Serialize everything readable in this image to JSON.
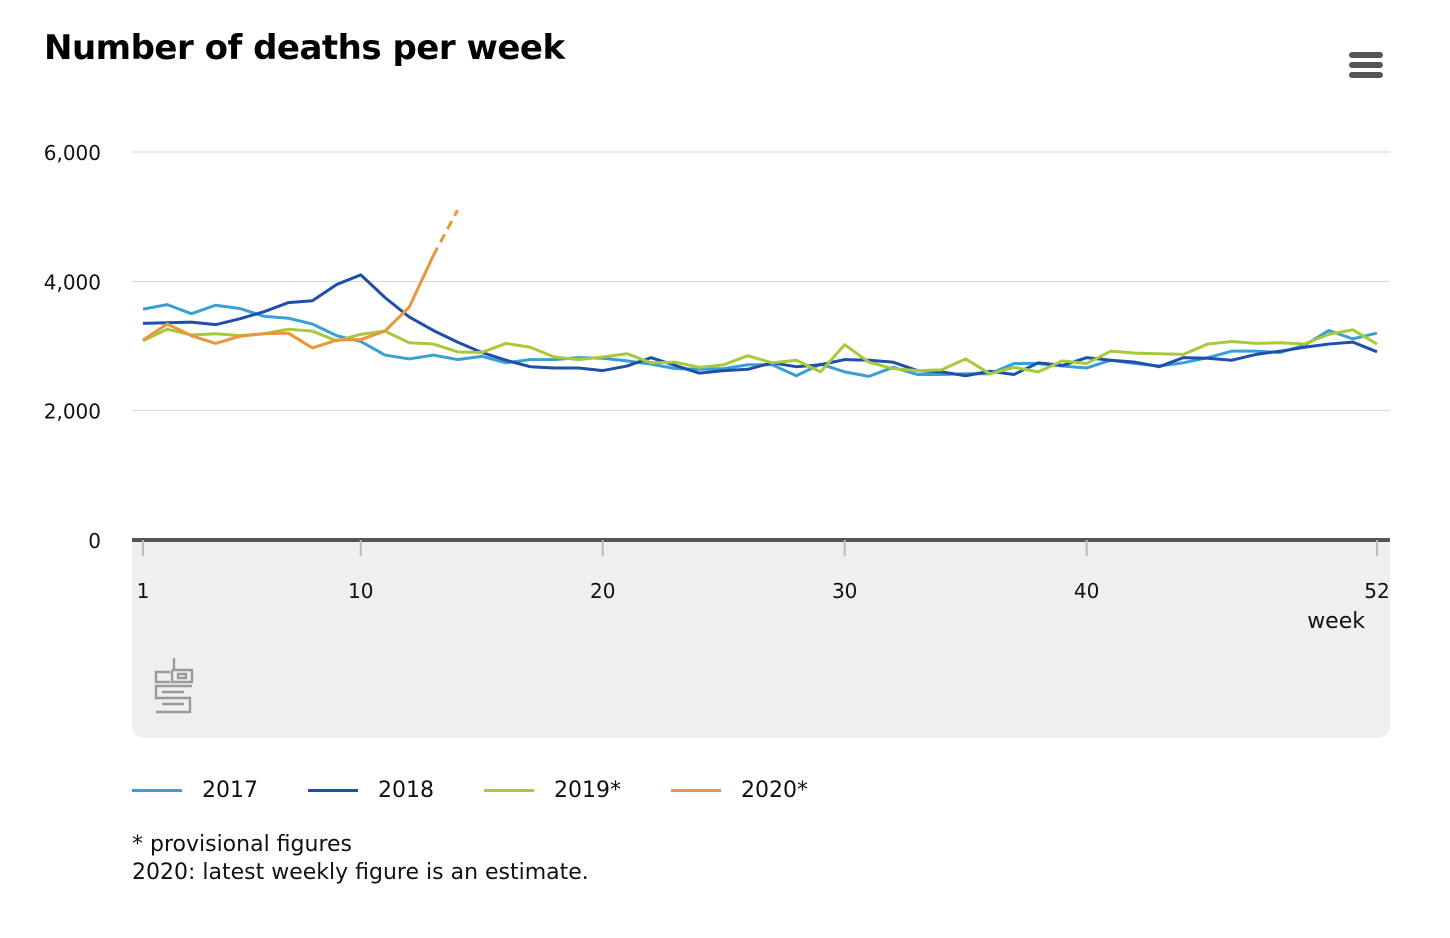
{
  "title": "Number of deaths per week",
  "menu_icon": "hamburger-menu-icon",
  "logo_icon": "cbs-logo-icon",
  "notes": [
    "* provisional figures",
    "2020: latest weekly figure is an estimate."
  ],
  "chart_data": {
    "type": "line",
    "title": "Number of deaths per week",
    "xlabel": "week",
    "ylabel": "",
    "xlim": [
      1,
      52
    ],
    "ylim": [
      0,
      6000
    ],
    "xticks": [
      1,
      10,
      20,
      30,
      40,
      52
    ],
    "yticks": [
      0,
      2000,
      4000,
      6000
    ],
    "ytick_labels": [
      "0",
      "2,000",
      "4,000",
      "6,000"
    ],
    "grid": true,
    "legend_position": "bottom",
    "series": [
      {
        "name": "2017",
        "color": "#3a9fd2",
        "x": [
          1,
          2,
          3,
          4,
          5,
          6,
          7,
          8,
          9,
          10,
          11,
          12,
          13,
          14,
          15,
          16,
          17,
          18,
          19,
          20,
          21,
          22,
          23,
          24,
          25,
          26,
          27,
          28,
          29,
          30,
          31,
          32,
          33,
          34,
          35,
          36,
          37,
          38,
          39,
          40,
          41,
          42,
          43,
          44,
          45,
          46,
          47,
          48,
          49,
          50,
          51,
          52
        ],
        "y": [
          3570,
          3640,
          3500,
          3630,
          3580,
          3460,
          3430,
          3340,
          3160,
          3070,
          2860,
          2800,
          2860,
          2790,
          2840,
          2740,
          2790,
          2790,
          2820,
          2810,
          2770,
          2720,
          2650,
          2640,
          2650,
          2710,
          2710,
          2540,
          2720,
          2600,
          2530,
          2670,
          2560,
          2560,
          2570,
          2570,
          2730,
          2730,
          2690,
          2660,
          2780,
          2730,
          2690,
          2740,
          2820,
          2920,
          2920,
          2900,
          3010,
          3240,
          3110,
          3200
        ]
      },
      {
        "name": "2018",
        "color": "#1f4fa8",
        "x": [
          1,
          2,
          3,
          4,
          5,
          6,
          7,
          8,
          9,
          10,
          11,
          12,
          13,
          14,
          15,
          16,
          17,
          18,
          19,
          20,
          21,
          22,
          23,
          24,
          25,
          26,
          27,
          28,
          29,
          30,
          31,
          32,
          33,
          34,
          35,
          36,
          37,
          38,
          39,
          40,
          41,
          42,
          43,
          44,
          45,
          46,
          47,
          48,
          49,
          50,
          51,
          52
        ],
        "y": [
          3350,
          3360,
          3370,
          3330,
          3420,
          3530,
          3670,
          3700,
          3950,
          4100,
          3750,
          3450,
          3240,
          3060,
          2900,
          2780,
          2680,
          2660,
          2660,
          2620,
          2690,
          2820,
          2700,
          2580,
          2620,
          2640,
          2740,
          2680,
          2710,
          2790,
          2780,
          2750,
          2620,
          2600,
          2540,
          2610,
          2560,
          2740,
          2700,
          2820,
          2780,
          2750,
          2680,
          2820,
          2810,
          2780,
          2870,
          2920,
          2980,
          3030,
          3060,
          2910
        ]
      },
      {
        "name": "2019*",
        "color": "#a8c93b",
        "x": [
          1,
          2,
          3,
          4,
          5,
          6,
          7,
          8,
          9,
          10,
          11,
          12,
          13,
          14,
          15,
          16,
          17,
          18,
          19,
          20,
          21,
          22,
          23,
          24,
          25,
          26,
          27,
          28,
          29,
          30,
          31,
          32,
          33,
          34,
          35,
          36,
          37,
          38,
          39,
          40,
          41,
          42,
          43,
          44,
          45,
          46,
          47,
          48,
          49,
          50,
          51,
          52
        ],
        "y": [
          3080,
          3260,
          3170,
          3190,
          3160,
          3190,
          3260,
          3230,
          3080,
          3180,
          3230,
          3050,
          3030,
          2910,
          2900,
          3040,
          2980,
          2830,
          2790,
          2830,
          2880,
          2740,
          2750,
          2670,
          2710,
          2850,
          2740,
          2780,
          2600,
          3020,
          2750,
          2650,
          2620,
          2630,
          2800,
          2570,
          2670,
          2600,
          2770,
          2730,
          2920,
          2890,
          2880,
          2870,
          3030,
          3070,
          3040,
          3050,
          3030,
          3180,
          3250,
          3030
        ]
      },
      {
        "name": "2020*",
        "color": "#e8973a",
        "x": [
          1,
          2,
          3,
          4,
          5,
          6,
          7,
          8,
          9,
          10,
          11,
          12,
          13,
          14
        ],
        "y": [
          3090,
          3340,
          3160,
          3040,
          3150,
          3190,
          3200,
          2970,
          3090,
          3100,
          3230,
          3600,
          4400,
          5100
        ],
        "estimate_from_x": 13
      }
    ]
  }
}
